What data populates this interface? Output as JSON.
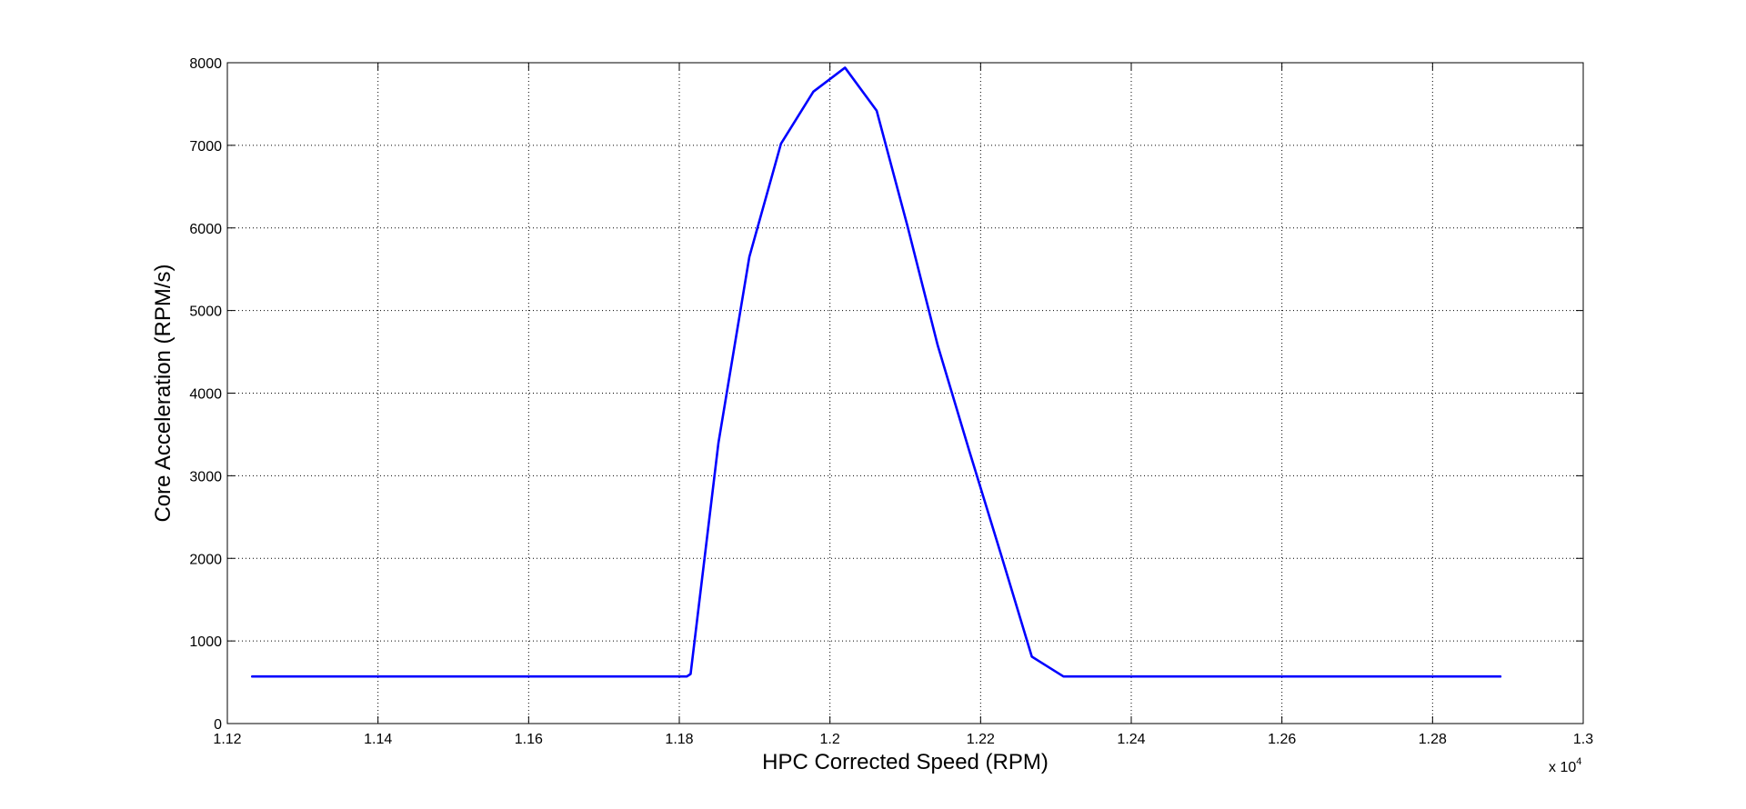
{
  "chart_data": {
    "type": "line",
    "title": "",
    "xlabel": "HPC Corrected Speed (RPM)",
    "ylabel": "Core Acceleration (RPM/s)",
    "x_multiplier_base": "x 10",
    "x_multiplier_exp": "4",
    "xlim": [
      1.12,
      1.3
    ],
    "ylim": [
      0,
      8000
    ],
    "x_ticks": [
      1.12,
      1.14,
      1.16,
      1.18,
      1.2,
      1.22,
      1.24,
      1.26,
      1.28,
      1.3
    ],
    "x_tick_labels": [
      "1.12",
      "1.14",
      "1.16",
      "1.18",
      "1.2",
      "1.22",
      "1.24",
      "1.26",
      "1.28",
      "1.3"
    ],
    "y_ticks": [
      0,
      1000,
      2000,
      3000,
      4000,
      5000,
      6000,
      7000,
      8000
    ],
    "y_tick_labels": [
      "0",
      "1000",
      "2000",
      "3000",
      "4000",
      "5000",
      "6000",
      "7000",
      "8000"
    ],
    "grid": true,
    "line_color": "#0000ff",
    "series": [
      {
        "x": [
          1.1233,
          1.181,
          1.1815,
          1.1852,
          1.1893,
          1.1935,
          1.1978,
          1.202,
          1.2062,
          1.2103,
          1.2143,
          1.2185,
          1.2227,
          1.2268,
          1.231,
          1.289
        ],
        "y": [
          570,
          570,
          600,
          3400,
          5650,
          7020,
          7650,
          7940,
          7420,
          6020,
          4580,
          3300,
          2050,
          810,
          570,
          570
        ]
      }
    ]
  }
}
